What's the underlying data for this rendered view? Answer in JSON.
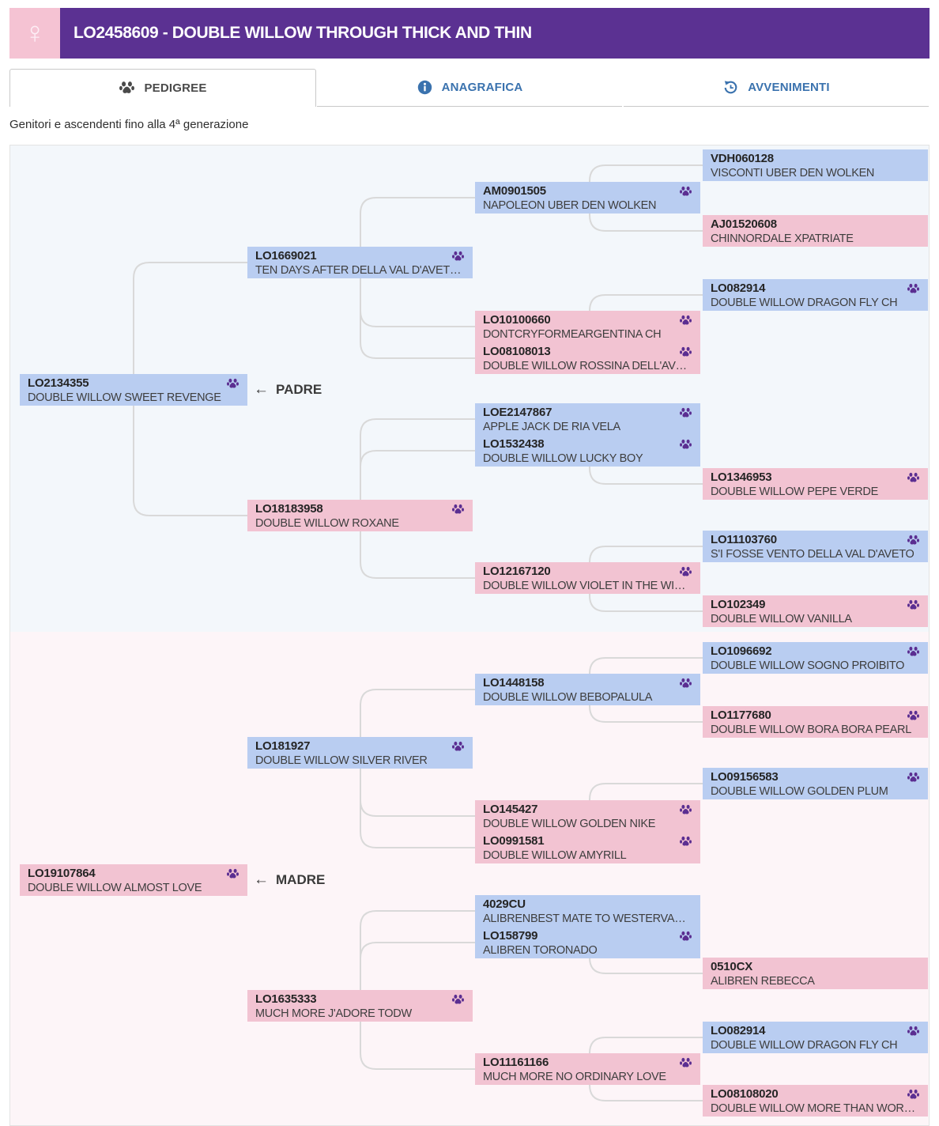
{
  "window": {
    "title": "LO2458609 - DOUBLE WILLOW THROUGH THICK AND THIN",
    "sex_symbol": "♀"
  },
  "tabs": [
    {
      "label": "PEDIGREE",
      "icon": "paw-icon",
      "active": true
    },
    {
      "label": "ANAGRAFICA",
      "icon": "info-icon",
      "active": false
    },
    {
      "label": "AVVENIMENTI",
      "icon": "history-icon",
      "active": false
    }
  ],
  "subtitle": "Genitori e ascendenti fino alla 4ª generazione",
  "parent_labels": {
    "arrow": "←",
    "father": "PADRE",
    "mother": "MADRE"
  },
  "colors": {
    "header_purple": "#5b3192",
    "badge_pink": "#f5c3d3",
    "male_box": "#b9cdf1",
    "female_box": "#f2c3d2",
    "paw_purple": "#5b2e91",
    "tab_blue": "#3a72ae",
    "sire_half_bg": "#f3f7fb",
    "dam_half_bg": "#fdf5f8",
    "connector_gray": "#d9d9d9"
  },
  "nodes": {
    "sweet_revenge": {
      "code": "LO2134355",
      "name": "DOUBLE WILLOW SWEET REVENGE",
      "sex": "m",
      "paw": true
    },
    "almost_love": {
      "code": "LO19107864",
      "name": "DOUBLE WILLOW ALMOST LOVE",
      "sex": "f",
      "paw": true
    },
    "ten_days": {
      "code": "LO1669021",
      "name": "TEN DAYS AFTER DELLA VAL D'AVET…",
      "sex": "m",
      "paw": true
    },
    "roxane": {
      "code": "LO18183958",
      "name": "DOUBLE WILLOW ROXANE",
      "sex": "f",
      "paw": true
    },
    "silver_river": {
      "code": "LO181927",
      "name": "DOUBLE WILLOW SILVER RIVER",
      "sex": "m",
      "paw": true
    },
    "jadore": {
      "code": "LO1635333",
      "name": "MUCH MORE J'ADORE TODW",
      "sex": "f",
      "paw": true
    },
    "napoleon": {
      "code": "AM0901505",
      "name": "NAPOLEON UBER DEN WOLKEN",
      "sex": "m",
      "paw": true
    },
    "dontcry": {
      "code": "LO10100660",
      "name": "DONTCRYFORMEARGENTINA CH",
      "sex": "f",
      "paw": true
    },
    "rossina": {
      "code": "LO08108013",
      "name": "DOUBLE WILLOW ROSSINA DELL'AV…",
      "sex": "f",
      "paw": true
    },
    "apple_jack": {
      "code": "LOE2147867",
      "name": "APPLE JACK DE RIA VELA",
      "sex": "m",
      "paw": true
    },
    "lucky_boy": {
      "code": "LO1532438",
      "name": "DOUBLE WILLOW LUCKY BOY",
      "sex": "m",
      "paw": true
    },
    "violet": {
      "code": "LO12167120",
      "name": "DOUBLE WILLOW VIOLET IN THE WI…",
      "sex": "f",
      "paw": true
    },
    "bebopalula": {
      "code": "LO1448158",
      "name": "DOUBLE WILLOW BEBOPALULA",
      "sex": "m",
      "paw": true
    },
    "golden_nike": {
      "code": "LO145427",
      "name": "DOUBLE WILLOW GOLDEN NIKE",
      "sex": "f",
      "paw": true
    },
    "amyrill": {
      "code": "LO0991581",
      "name": "DOUBLE WILLOW AMYRILL",
      "sex": "f",
      "paw": true
    },
    "alibrenbest": {
      "code": "4029CU",
      "name": "ALIBRENBEST MATE TO WESTERVA…",
      "sex": "m",
      "paw": false
    },
    "toronado": {
      "code": "LO158799",
      "name": "ALIBREN TORONADO",
      "sex": "m",
      "paw": true
    },
    "no_ordinary": {
      "code": "LO11161166",
      "name": "MUCH MORE NO ORDINARY LOVE",
      "sex": "f",
      "paw": true
    },
    "visconti": {
      "code": "VDH060128",
      "name": "VISCONTI UBER DEN WOLKEN",
      "sex": "m",
      "paw": false
    },
    "chinnordale": {
      "code": "AJ01520608",
      "name": "CHINNORDALE XPATRIATE",
      "sex": "f",
      "paw": false
    },
    "dragonfly_a": {
      "code": "LO082914",
      "name": "DOUBLE WILLOW DRAGON FLY CH",
      "sex": "m",
      "paw": true
    },
    "pepe_verde": {
      "code": "LO1346953",
      "name": "DOUBLE WILLOW PEPE VERDE",
      "sex": "f",
      "paw": true
    },
    "si_fosse": {
      "code": "LO11103760",
      "name": "S'I FOSSE VENTO DELLA VAL D'AVETO",
      "sex": "m",
      "paw": true
    },
    "vanilla": {
      "code": "LO102349",
      "name": "DOUBLE WILLOW VANILLA",
      "sex": "f",
      "paw": true
    },
    "sogno": {
      "code": "LO1096692",
      "name": "DOUBLE WILLOW SOGNO PROIBITO",
      "sex": "m",
      "paw": true
    },
    "bora_bora": {
      "code": "LO1177680",
      "name": "DOUBLE WILLOW BORA BORA PEARL",
      "sex": "f",
      "paw": true
    },
    "golden_plum": {
      "code": "LO09156583",
      "name": "DOUBLE WILLOW GOLDEN PLUM",
      "sex": "m",
      "paw": true
    },
    "rebecca": {
      "code": "0510CX",
      "name": "ALIBREN REBECCA",
      "sex": "f",
      "paw": false
    },
    "dragonfly_b": {
      "code": "LO082914",
      "name": "DOUBLE WILLOW DRAGON FLY CH",
      "sex": "m",
      "paw": true
    },
    "more_than": {
      "code": "LO08108020",
      "name": "DOUBLE WILLOW MORE THAN WOR…",
      "sex": "f",
      "paw": true
    }
  }
}
